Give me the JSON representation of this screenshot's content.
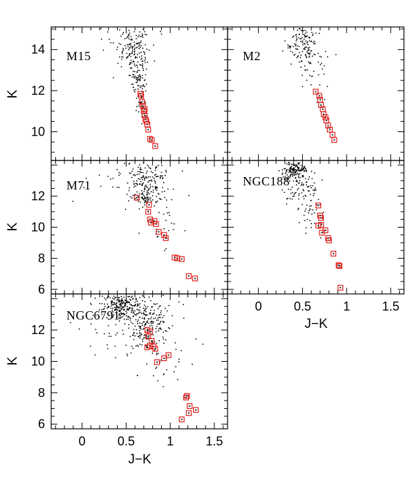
{
  "figure": {
    "x_axis_title": "J−K",
    "y_axis_title": "K",
    "colors": {
      "field_stars": "#000000",
      "members": "#e0201b",
      "frame": "#000000"
    }
  },
  "chart_data": [
    {
      "type": "scatter",
      "id": "m15",
      "label": "M15",
      "xlim": [
        -0.35,
        1.65
      ],
      "ylim": [
        15.1,
        8.6
      ],
      "yticks": [
        10,
        12,
        14
      ],
      "xticks": [
        0,
        0.5,
        1,
        1.5
      ],
      "y_minor_step": 0.5,
      "x_minor_step": 0.1,
      "show_yticklabels": true,
      "show_xticklabels": false,
      "members": [
        [
          0.83,
          9.3
        ],
        [
          0.79,
          9.6
        ],
        [
          0.77,
          9.65
        ],
        [
          0.75,
          10.1
        ],
        [
          0.74,
          10.35
        ],
        [
          0.73,
          10.5
        ],
        [
          0.72,
          10.6
        ],
        [
          0.71,
          10.8
        ],
        [
          0.7,
          11.0
        ],
        [
          0.71,
          11.1
        ],
        [
          0.69,
          11.25
        ],
        [
          0.68,
          11.45
        ],
        [
          0.67,
          11.75
        ],
        [
          0.66,
          11.85
        ]
      ],
      "field": {
        "seed": 15,
        "clumps": [
          {
            "n": 140,
            "cx": 0.61,
            "cy": 14.0,
            "sx": 0.09,
            "sy": 0.65
          },
          {
            "n": 70,
            "cx": 0.63,
            "cy": 12.7,
            "sx": 0.05,
            "sy": 0.55
          },
          {
            "n": 25,
            "cx": 0.68,
            "cy": 11.5,
            "sx": 0.03,
            "sy": 0.5
          },
          {
            "n": 20,
            "cx": 0.4,
            "cy": 14.6,
            "sx": 0.15,
            "sy": 0.3
          }
        ]
      }
    },
    {
      "type": "scatter",
      "id": "m2",
      "label": "M2",
      "xlim": [
        -0.35,
        1.65
      ],
      "ylim": [
        15.1,
        8.6
      ],
      "yticks": [
        10,
        12,
        14
      ],
      "xticks": [
        0,
        0.5,
        1,
        1.5
      ],
      "y_minor_step": 0.5,
      "x_minor_step": 0.1,
      "show_yticklabels": false,
      "show_xticklabels": false,
      "members": [
        [
          0.86,
          9.6
        ],
        [
          0.84,
          9.85
        ],
        [
          0.81,
          10.1
        ],
        [
          0.79,
          10.3
        ],
        [
          0.77,
          10.55
        ],
        [
          0.76,
          10.7
        ],
        [
          0.74,
          10.85
        ],
        [
          0.73,
          11.1
        ],
        [
          0.71,
          11.3
        ],
        [
          0.7,
          11.55
        ],
        [
          0.69,
          11.75
        ],
        [
          0.65,
          11.95
        ]
      ],
      "field": {
        "seed": 2,
        "clumps": [
          {
            "n": 120,
            "cx": 0.52,
            "cy": 14.2,
            "sx": 0.1,
            "sy": 0.5
          },
          {
            "n": 25,
            "cx": 0.58,
            "cy": 13.2,
            "sx": 0.06,
            "sy": 0.45
          },
          {
            "n": 10,
            "cx": 0.7,
            "cy": 12.4,
            "sx": 0.05,
            "sy": 0.4
          }
        ]
      }
    },
    {
      "type": "scatter",
      "id": "m71",
      "label": "M71",
      "xlim": [
        -0.35,
        1.65
      ],
      "ylim": [
        14.3,
        5.7
      ],
      "yticks": [
        6,
        8,
        10,
        12
      ],
      "xticks": [
        0,
        0.5,
        1,
        1.5
      ],
      "y_minor_step": 0.5,
      "x_minor_step": 0.1,
      "show_yticklabels": true,
      "show_xticklabels": false,
      "members": [
        [
          1.28,
          6.7
        ],
        [
          1.21,
          6.85
        ],
        [
          1.13,
          7.95
        ],
        [
          1.08,
          8.0
        ],
        [
          1.05,
          8.05
        ],
        [
          0.95,
          9.3
        ],
        [
          0.93,
          9.5
        ],
        [
          0.87,
          9.7
        ],
        [
          0.84,
          10.2
        ],
        [
          0.82,
          10.4
        ],
        [
          0.78,
          10.3
        ],
        [
          0.77,
          10.5
        ],
        [
          0.75,
          11.0
        ],
        [
          0.76,
          11.45
        ],
        [
          0.62,
          11.9
        ]
      ],
      "field": {
        "seed": 71,
        "clumps": [
          {
            "n": 160,
            "cx": 0.75,
            "cy": 12.8,
            "sx": 0.12,
            "sy": 0.8
          },
          {
            "n": 40,
            "cx": 0.68,
            "cy": 11.9,
            "sx": 0.08,
            "sy": 0.15
          },
          {
            "n": 35,
            "cx": 0.5,
            "cy": 13.2,
            "sx": 0.25,
            "sy": 0.7
          },
          {
            "n": 30,
            "cx": 0.95,
            "cy": 10.5,
            "sx": 0.12,
            "sy": 1.3
          }
        ]
      }
    },
    {
      "type": "scatter",
      "id": "ngc188",
      "label": "NGC188",
      "xlim": [
        -0.35,
        1.65
      ],
      "ylim": [
        14.3,
        5.7
      ],
      "yticks": [
        6,
        8,
        10,
        12
      ],
      "xticks": [
        0,
        0.5,
        1,
        1.5
      ],
      "y_minor_step": 0.5,
      "x_minor_step": 0.1,
      "show_yticklabels": false,
      "show_xticklabels": true,
      "members": [
        [
          0.93,
          6.1
        ],
        [
          0.92,
          7.5
        ],
        [
          0.91,
          7.55
        ],
        [
          0.85,
          8.3
        ],
        [
          0.8,
          9.15
        ],
        [
          0.79,
          9.3
        ],
        [
          0.76,
          9.8
        ],
        [
          0.72,
          9.65
        ],
        [
          0.71,
          10.15
        ],
        [
          0.68,
          10.1
        ],
        [
          0.71,
          10.6
        ],
        [
          0.7,
          10.75
        ],
        [
          0.68,
          11.4
        ]
      ],
      "field": {
        "seed": 188,
        "clumps": [
          {
            "n": 150,
            "cx": 0.42,
            "cy": 13.6,
            "sx": 0.07,
            "sy": 0.3
          },
          {
            "n": 70,
            "cx": 0.5,
            "cy": 12.3,
            "sx": 0.1,
            "sy": 0.8
          },
          {
            "n": 35,
            "cx": 0.63,
            "cy": 11.2,
            "sx": 0.06,
            "sy": 1.0
          }
        ]
      }
    },
    {
      "type": "scatter",
      "id": "ngc6791",
      "label": "NGC6791",
      "xlim": [
        -0.35,
        1.65
      ],
      "ylim": [
        14.3,
        5.7
      ],
      "yticks": [
        6,
        8,
        10,
        12
      ],
      "xticks": [
        0,
        0.5,
        1,
        1.5
      ],
      "y_minor_step": 0.5,
      "x_minor_step": 0.1,
      "show_yticklabels": true,
      "show_xticklabels": true,
      "members": [
        [
          1.13,
          6.3
        ],
        [
          1.21,
          6.7
        ],
        [
          1.29,
          6.9
        ],
        [
          1.22,
          7.15
        ],
        [
          1.18,
          7.7
        ],
        [
          1.19,
          7.8
        ],
        [
          0.98,
          10.4
        ],
        [
          0.93,
          10.2
        ],
        [
          0.85,
          9.95
        ],
        [
          0.81,
          10.95
        ],
        [
          0.77,
          11.0
        ],
        [
          0.74,
          10.9
        ],
        [
          0.79,
          11.3
        ],
        [
          0.75,
          11.6
        ],
        [
          0.77,
          11.9
        ],
        [
          0.74,
          12.0
        ],
        [
          0.83,
          10.8
        ]
      ],
      "field": {
        "seed": 6791,
        "clumps": [
          {
            "n": 230,
            "cx": 0.45,
            "cy": 13.6,
            "sx": 0.12,
            "sy": 0.45
          },
          {
            "n": 200,
            "cx": 0.75,
            "cy": 12.5,
            "sx": 0.1,
            "sy": 0.9
          },
          {
            "n": 80,
            "cx": 0.55,
            "cy": 12.0,
            "sx": 0.25,
            "sy": 1.0
          },
          {
            "n": 25,
            "cx": 0.9,
            "cy": 9.8,
            "sx": 0.15,
            "sy": 0.8
          }
        ]
      }
    }
  ]
}
